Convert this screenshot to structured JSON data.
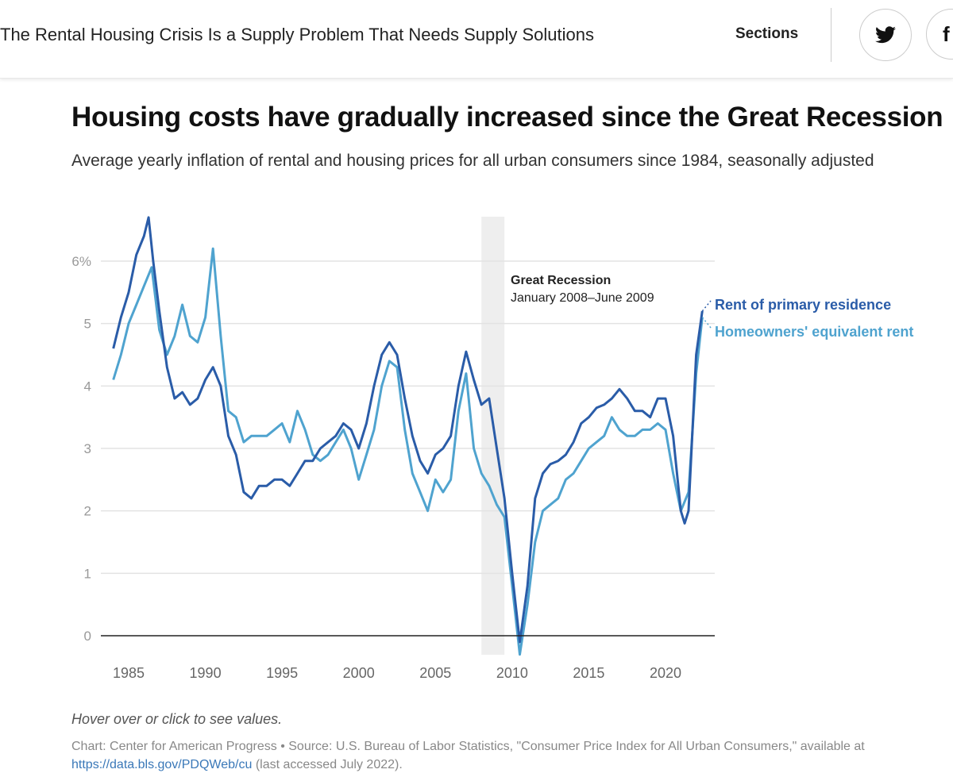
{
  "header": {
    "article_title": "The Rental Housing Crisis Is a Supply Problem That Needs Supply Solutions",
    "sections_label": "Sections",
    "share_icons": [
      "twitter-icon",
      "facebook-icon"
    ]
  },
  "chart_data": {
    "type": "line",
    "title": "Housing costs have gradually increased since the Great Recession",
    "subtitle": "Average yearly inflation of rental and housing prices for all urban consumers since 1984, seasonally adjusted",
    "xlabel": "",
    "ylabel": "",
    "xlim": [
      1984,
      2022.5
    ],
    "ylim": [
      -0.3,
      6.7
    ],
    "x_ticks": [
      "1985",
      "1990",
      "1995",
      "2000",
      "2005",
      "2010",
      "2015",
      "2020"
    ],
    "y_ticks": [
      "0",
      "1",
      "2",
      "3",
      "4",
      "5",
      "6%"
    ],
    "grid": true,
    "annotation": {
      "title": "Great Recession",
      "text": "January 2008–June 2009",
      "start": 2008.0,
      "end": 2009.5
    },
    "series": [
      {
        "name": "Rent of primary residence",
        "color": "#2a5ca8",
        "x": [
          1984,
          1984.5,
          1985,
          1985.5,
          1986,
          1986.3,
          1986.6,
          1987,
          1987.5,
          1988,
          1988.5,
          1989,
          1989.5,
          1990,
          1990.5,
          1991,
          1991.5,
          1992,
          1992.5,
          1993,
          1993.5,
          1994,
          1994.5,
          1995,
          1995.5,
          1996,
          1996.5,
          1997,
          1997.5,
          1998,
          1998.5,
          1999,
          1999.5,
          2000,
          2000.5,
          2001,
          2001.5,
          2002,
          2002.5,
          2003,
          2003.5,
          2004,
          2004.5,
          2005,
          2005.5,
          2006,
          2006.5,
          2007,
          2007.5,
          2008,
          2008.5,
          2009,
          2009.5,
          2010,
          2010.5,
          2011,
          2011.5,
          2012,
          2012.5,
          2013,
          2013.5,
          2014,
          2014.5,
          2015,
          2015.5,
          2016,
          2016.5,
          2017,
          2017.5,
          2018,
          2018.5,
          2019,
          2019.5,
          2020,
          2020.5,
          2021,
          2021.25,
          2021.5,
          2022,
          2022.4
        ],
        "values": [
          4.6,
          5.1,
          5.5,
          6.1,
          6.4,
          6.7,
          6.0,
          5.2,
          4.3,
          3.8,
          3.9,
          3.7,
          3.8,
          4.1,
          4.3,
          4.0,
          3.2,
          2.9,
          2.3,
          2.2,
          2.4,
          2.4,
          2.5,
          2.5,
          2.4,
          2.6,
          2.8,
          2.8,
          3.0,
          3.1,
          3.2,
          3.4,
          3.3,
          3.0,
          3.4,
          4.0,
          4.5,
          4.7,
          4.5,
          3.8,
          3.2,
          2.8,
          2.6,
          2.9,
          3.0,
          3.2,
          4.0,
          4.55,
          4.1,
          3.7,
          3.8,
          3.0,
          2.2,
          1.0,
          -0.1,
          0.8,
          2.2,
          2.6,
          2.75,
          2.8,
          2.9,
          3.1,
          3.4,
          3.5,
          3.65,
          3.7,
          3.8,
          3.95,
          3.8,
          3.6,
          3.6,
          3.5,
          3.8,
          3.8,
          3.2,
          2.0,
          1.8,
          2.0,
          4.5,
          5.2
        ]
      },
      {
        "name": "Homeowners' equivalent rent",
        "color": "#4fa3cf",
        "x": [
          1984,
          1984.5,
          1985,
          1985.5,
          1986,
          1986.5,
          1987,
          1987.5,
          1988,
          1988.5,
          1989,
          1989.5,
          1990,
          1990.5,
          1991,
          1991.5,
          1992,
          1992.5,
          1993,
          1993.5,
          1994,
          1994.5,
          1995,
          1995.5,
          1996,
          1996.5,
          1997,
          1997.5,
          1998,
          1998.5,
          1999,
          1999.5,
          2000,
          2000.5,
          2001,
          2001.5,
          2002,
          2002.5,
          2003,
          2003.5,
          2004,
          2004.5,
          2005,
          2005.5,
          2006,
          2006.5,
          2007,
          2007.5,
          2008,
          2008.5,
          2009,
          2009.5,
          2010,
          2010.5,
          2011,
          2011.5,
          2012,
          2012.5,
          2013,
          2013.5,
          2014,
          2014.5,
          2015,
          2015.5,
          2016,
          2016.5,
          2017,
          2017.5,
          2018,
          2018.5,
          2019,
          2019.5,
          2020,
          2020.5,
          2021,
          2021.5,
          2022,
          2022.4
        ],
        "values": [
          4.1,
          4.5,
          5.0,
          5.3,
          5.6,
          5.9,
          4.9,
          4.5,
          4.8,
          5.3,
          4.8,
          4.7,
          5.1,
          6.2,
          4.8,
          3.6,
          3.5,
          3.1,
          3.2,
          3.2,
          3.2,
          3.3,
          3.4,
          3.1,
          3.6,
          3.3,
          2.9,
          2.8,
          2.9,
          3.1,
          3.3,
          3.0,
          2.5,
          2.9,
          3.3,
          4.0,
          4.4,
          4.3,
          3.3,
          2.6,
          2.3,
          2.0,
          2.5,
          2.3,
          2.5,
          3.6,
          4.2,
          3.0,
          2.6,
          2.4,
          2.1,
          1.9,
          0.8,
          -0.3,
          0.5,
          1.5,
          2.0,
          2.1,
          2.2,
          2.5,
          2.6,
          2.8,
          3.0,
          3.1,
          3.2,
          3.5,
          3.3,
          3.2,
          3.2,
          3.3,
          3.3,
          3.4,
          3.3,
          2.6,
          2.0,
          2.3,
          4.2,
          5.1
        ]
      }
    ]
  },
  "footer": {
    "note": "Hover over or click to see values.",
    "source_prefix": "Chart: Center for American Progress • Source: U.S. Bureau of Labor Statistics, \"Consumer Price Index for All Urban Consumers,\" available at ",
    "source_link": "https://data.bls.gov/PDQWeb/cu",
    "source_suffix": " (last accessed July 2022)."
  }
}
